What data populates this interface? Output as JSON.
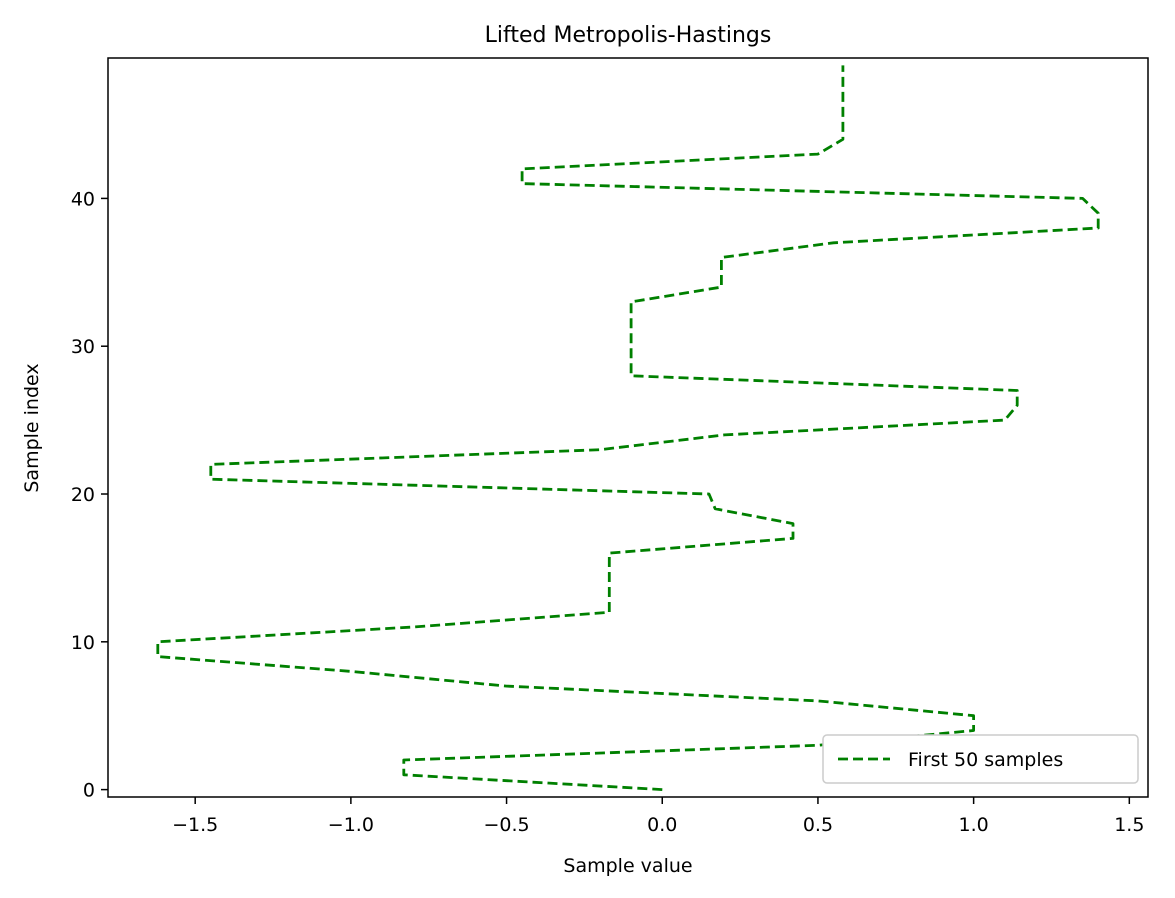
{
  "chart_data": {
    "type": "line",
    "title": "Lifted Metropolis-Hastings",
    "xlabel": "Sample value",
    "ylabel": "Sample index",
    "xlim": [
      -1.78,
      1.56
    ],
    "ylim": [
      -0.5,
      49.5
    ],
    "xticks": [
      -1.5,
      -1.0,
      -0.5,
      0.0,
      0.5,
      1.0,
      1.5
    ],
    "xtick_labels": [
      "−1.5",
      "−1.0",
      "−0.5",
      "0.0",
      "0.5",
      "1.0",
      "1.5"
    ],
    "yticks": [
      0,
      10,
      20,
      30,
      40
    ],
    "ytick_labels": [
      "0",
      "10",
      "20",
      "30",
      "40"
    ],
    "grid": false,
    "legend_position": "lower right",
    "series": [
      {
        "name": "First 50 samples",
        "color": "#008000",
        "line_style": "dashed",
        "x": [
          0.0,
          -0.83,
          -0.83,
          0.5,
          1.0,
          1.0,
          0.5,
          -0.5,
          -1.0,
          -1.62,
          -1.62,
          -0.8,
          -0.17,
          -0.17,
          -0.17,
          -0.17,
          -0.17,
          0.42,
          0.42,
          0.17,
          0.15,
          -1.45,
          -1.45,
          -0.2,
          0.2,
          1.1,
          1.14,
          1.14,
          -0.1,
          -0.1,
          -0.1,
          -0.1,
          -0.1,
          -0.1,
          0.19,
          0.19,
          0.19,
          0.55,
          1.4,
          1.4,
          1.35,
          -0.45,
          -0.45,
          0.5,
          0.58,
          0.58,
          0.58,
          0.58,
          0.58,
          0.58
        ],
        "y": [
          0,
          1,
          2,
          3,
          4,
          5,
          6,
          7,
          8,
          9,
          10,
          11,
          12,
          13,
          14,
          15,
          16,
          17,
          18,
          19,
          20,
          21,
          22,
          23,
          24,
          25,
          26,
          27,
          28,
          29,
          30,
          31,
          32,
          33,
          34,
          35,
          36,
          37,
          38,
          39,
          40,
          41,
          42,
          43,
          44,
          45,
          46,
          47,
          48,
          49
        ]
      }
    ]
  }
}
